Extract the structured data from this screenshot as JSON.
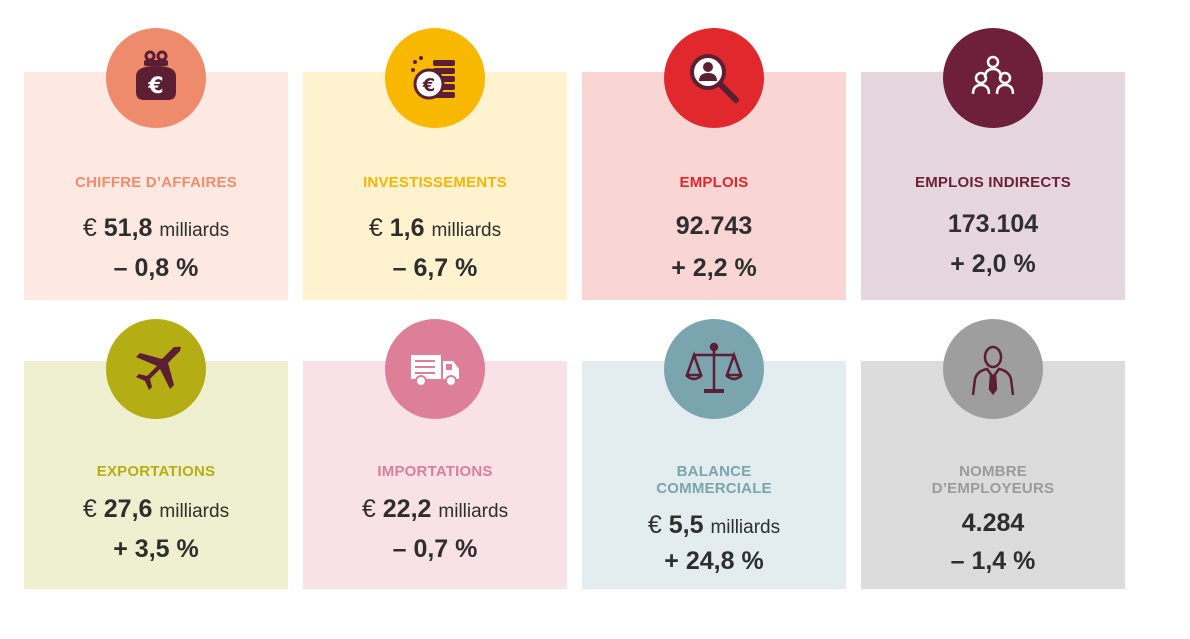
{
  "cards": [
    {
      "title": "CHIFFRE D’AFFAIRES",
      "currency": "€",
      "value": "51,8",
      "unit": "milliards",
      "change": "– 0,8 %",
      "icon": "purse-euro-icon",
      "title_color": "#ee8d6e",
      "circle_color": "#ef8b6d",
      "box_color": "#fde8e2"
    },
    {
      "title": "INVESTISSEMENTS",
      "currency": "€",
      "value": "1,6",
      "unit": "milliards",
      "change": "– 6,7 %",
      "icon": "coins-euro-icon",
      "title_color": "#f6b500",
      "circle_color": "#f8b800",
      "box_color": "#fff2cf"
    },
    {
      "title": "EMPLOIS",
      "currency": "",
      "value": "92.743",
      "unit": "",
      "change": "+ 2,2 %",
      "icon": "magnifier-person-icon",
      "title_color": "#e0262b",
      "circle_color": "#e0282d",
      "box_color": "#f9d5d4"
    },
    {
      "title": "EMPLOIS INDIRECTS",
      "currency": "",
      "value": "173.104",
      "unit": "",
      "change": "+ 2,0 %",
      "icon": "people-group-icon",
      "title_color": "#6e2039",
      "circle_color": "#6e1f3a",
      "box_color": "#e5d7dd"
    },
    {
      "title": "EXPORTATIONS",
      "currency": "€",
      "value": "27,6",
      "unit": "milliards",
      "change": "+ 3,5 %",
      "icon": "airplane-icon",
      "title_color": "#b6ae12",
      "circle_color": "#b5ad14",
      "box_color": "#eff0cf"
    },
    {
      "title": "IMPORTATIONS",
      "currency": "€",
      "value": "22,2",
      "unit": "milliards",
      "change": "– 0,7 %",
      "icon": "truck-icon",
      "title_color": "#d97f97",
      "circle_color": "#dd7f99",
      "box_color": "#f8e2e8"
    },
    {
      "title": "BALANCE\nCOMMERCIALE",
      "currency": "€",
      "value": "5,5",
      "unit": "milliards",
      "change": "+ 24,8 %",
      "icon": "scales-icon",
      "title_color": "#7aa6ae",
      "circle_color": "#7ba5ae",
      "box_color": "#e3ecee"
    },
    {
      "title": "NOMBRE\nD’EMPLOYEURS",
      "currency": "",
      "value": "4.284",
      "unit": "",
      "change": "– 1,4 %",
      "icon": "employer-icon",
      "title_color": "#9b9b9b",
      "circle_color": "#9e9e9e",
      "box_color": "#dcdcdc"
    }
  ]
}
